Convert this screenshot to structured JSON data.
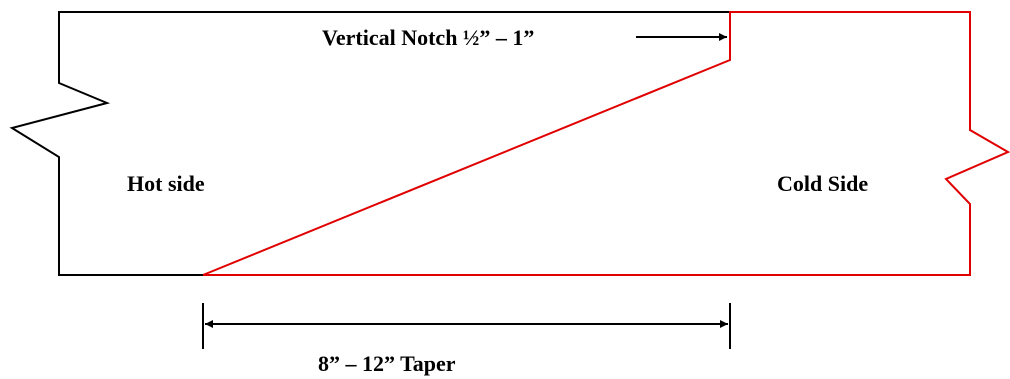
{
  "labels": {
    "vertical_notch": "Vertical Notch ½” – 1”",
    "hot_side": "Hot side",
    "cold_side": "Cold Side",
    "taper": "8” – 12” Taper"
  },
  "colors": {
    "hot_outline": "#000000",
    "cold_outline": "#e00000",
    "arrow": "#000000"
  }
}
